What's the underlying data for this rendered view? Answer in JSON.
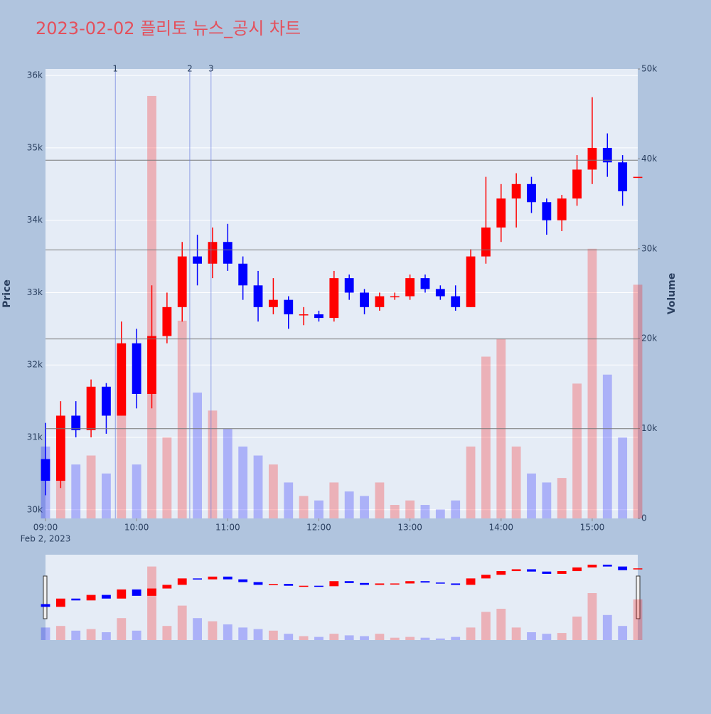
{
  "chart_data": {
    "type": "candlestick",
    "title": "2023-02-02 플리토 뉴스_공시 차트",
    "y_label": "Price",
    "y2_label": "Volume",
    "xtick_date_label": "Feb 2, 2023",
    "x": [
      "09:00",
      "09:10",
      "09:20",
      "09:30",
      "09:40",
      "09:50",
      "10:00",
      "10:10",
      "10:20",
      "10:30",
      "10:40",
      "10:50",
      "11:00",
      "11:10",
      "11:20",
      "11:30",
      "11:40",
      "11:50",
      "12:00",
      "12:10",
      "12:20",
      "12:30",
      "12:40",
      "12:50",
      "13:00",
      "13:10",
      "13:20",
      "13:30",
      "13:40",
      "13:50",
      "14:00",
      "14:10",
      "14:20",
      "14:30",
      "14:40",
      "14:50",
      "15:00",
      "15:10",
      "15:20",
      "15:30"
    ],
    "open": [
      30700,
      30400,
      31300,
      31100,
      31700,
      31300,
      32300,
      31600,
      32400,
      32800,
      33500,
      33400,
      33700,
      33400,
      33100,
      32800,
      32900,
      32700,
      32700,
      32650,
      33200,
      33000,
      32800,
      32950,
      32950,
      33200,
      33050,
      32950,
      32800,
      33500,
      33900,
      34300,
      34500,
      34250,
      34000,
      34300,
      34700,
      35000,
      34800,
      34600
    ],
    "high": [
      31200,
      31500,
      31500,
      31800,
      31750,
      32600,
      32500,
      33100,
      33000,
      33700,
      33800,
      33900,
      33950,
      33500,
      33300,
      33200,
      32950,
      32800,
      32750,
      33300,
      33250,
      33050,
      33000,
      33000,
      33250,
      33250,
      33100,
      33100,
      33600,
      34600,
      34500,
      34650,
      34600,
      34300,
      34350,
      34900,
      35700,
      35200,
      34900,
      34600
    ],
    "low": [
      30200,
      30300,
      31000,
      31000,
      31050,
      31300,
      31400,
      31400,
      32300,
      32600,
      33100,
      33200,
      33300,
      32900,
      32600,
      32700,
      32500,
      32550,
      32600,
      32600,
      32900,
      32700,
      32750,
      32900,
      32900,
      33000,
      32900,
      32750,
      32800,
      33400,
      33700,
      33900,
      34100,
      33800,
      33850,
      34200,
      34500,
      34600,
      34200,
      34600
    ],
    "close": [
      30400,
      31300,
      31100,
      31700,
      31300,
      32300,
      31600,
      32400,
      32800,
      33500,
      33400,
      33700,
      33400,
      33100,
      32800,
      32900,
      32700,
      32700,
      32650,
      33200,
      33000,
      32800,
      32950,
      32950,
      33200,
      33050,
      32950,
      32800,
      33500,
      33900,
      34300,
      34500,
      34250,
      34000,
      34300,
      34700,
      35000,
      34800,
      34400,
      34600
    ],
    "volume": [
      8000,
      9000,
      6000,
      7000,
      5000,
      14000,
      6000,
      47000,
      9000,
      22000,
      14000,
      12000,
      10000,
      8000,
      7000,
      6000,
      4000,
      2500,
      2000,
      4000,
      3000,
      2500,
      4000,
      1500,
      2000,
      1500,
      1000,
      2000,
      8000,
      18000,
      20000,
      8000,
      5000,
      4000,
      4500,
      15000,
      30000,
      16000,
      9000,
      26000
    ],
    "up_color": "#ff0000",
    "down_color": "#0000ff",
    "xlim": [
      "09:00",
      "15:30"
    ],
    "xticks": [
      "09:00",
      "10:00",
      "11:00",
      "12:00",
      "13:00",
      "14:00",
      "15:00"
    ],
    "ylim": [
      29880,
      36090
    ],
    "yticks": [
      {
        "value": 30000,
        "label": "30k"
      },
      {
        "value": 31000,
        "label": "31k"
      },
      {
        "value": 32000,
        "label": "32k"
      },
      {
        "value": 33000,
        "label": "33k"
      },
      {
        "value": 34000,
        "label": "34k"
      },
      {
        "value": 35000,
        "label": "35k"
      },
      {
        "value": 36000,
        "label": "36k"
      }
    ],
    "y2lim": [
      0,
      50000
    ],
    "y2ticks": [
      0,
      {
        "value": 10000,
        "label": "10k"
      },
      {
        "value": 20000,
        "label": "20k"
      },
      {
        "value": 30000,
        "label": "30k"
      },
      {
        "value": 40000,
        "label": "40k"
      },
      {
        "value": 50000,
        "label": "50k"
      }
    ],
    "hlines": [
      34830,
      33590,
      32360,
      31120
    ],
    "events": [
      {
        "x": "09:46",
        "label": "1"
      },
      {
        "x": "10:35",
        "label": "2"
      },
      {
        "x": "10:49",
        "label": "3"
      }
    ],
    "grid": true
  }
}
